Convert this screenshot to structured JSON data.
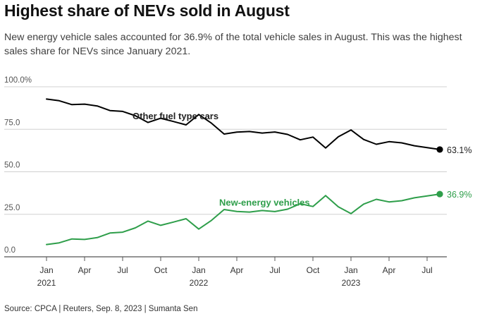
{
  "title": "Highest share of NEVs sold in August",
  "subtitle": "New energy vehicle sales accounted for 36.9% of the total vehicle sales in August. This was the highest sales share for NEVs since January 2021.",
  "source": "Source: CPCA | Reuters, Sep. 8, 2023 | Sumanta Sen",
  "chart_data": {
    "type": "line",
    "ylim": [
      0,
      100
    ],
    "yticks": [
      0,
      25,
      50,
      75,
      100
    ],
    "ytick_labels": [
      "0.0",
      "25.0",
      "50.0",
      "75.0",
      "100.0%"
    ],
    "xticks": [
      {
        "index": 0,
        "label": "Jan",
        "year": "2021"
      },
      {
        "index": 3,
        "label": "Apr",
        "year": ""
      },
      {
        "index": 6,
        "label": "Jul",
        "year": ""
      },
      {
        "index": 9,
        "label": "Oct",
        "year": ""
      },
      {
        "index": 12,
        "label": "Jan",
        "year": "2022"
      },
      {
        "index": 15,
        "label": "Apr",
        "year": ""
      },
      {
        "index": 18,
        "label": "Jul",
        "year": ""
      },
      {
        "index": 21,
        "label": "Oct",
        "year": ""
      },
      {
        "index": 24,
        "label": "Jan",
        "year": "2023"
      },
      {
        "index": 27,
        "label": "Apr",
        "year": ""
      },
      {
        "index": 30,
        "label": "Jul",
        "year": ""
      }
    ],
    "x": [
      "2021-01",
      "2021-02",
      "2021-03",
      "2021-04",
      "2021-05",
      "2021-06",
      "2021-07",
      "2021-08",
      "2021-09",
      "2021-10",
      "2021-11",
      "2021-12",
      "2022-01",
      "2022-02",
      "2022-03",
      "2022-04",
      "2022-05",
      "2022-06",
      "2022-07",
      "2022-08",
      "2022-09",
      "2022-10",
      "2022-11",
      "2022-12",
      "2023-01",
      "2023-02",
      "2023-03",
      "2023-04",
      "2023-05",
      "2023-06",
      "2023-07",
      "2023-08"
    ],
    "series": [
      {
        "name": "Other fuel type cars",
        "color": "#000000",
        "end_label": "63.1%",
        "values": [
          92.8,
          91.8,
          89.5,
          89.8,
          88.7,
          86.0,
          85.5,
          83.0,
          79.0,
          81.5,
          79.6,
          77.6,
          83.7,
          78.6,
          72.2,
          73.3,
          73.7,
          72.8,
          73.4,
          72.0,
          68.8,
          70.4,
          64.0,
          70.6,
          74.6,
          69.0,
          66.2,
          67.7,
          67.0,
          65.3,
          64.2,
          63.1
        ]
      },
      {
        "name": "New-energy vehicles",
        "color": "#2e9e4a",
        "end_label": "36.9%",
        "values": [
          7.2,
          8.2,
          10.5,
          10.2,
          11.3,
          14.0,
          14.5,
          17.0,
          21.0,
          18.5,
          20.4,
          22.4,
          16.3,
          21.4,
          27.8,
          26.7,
          26.3,
          27.2,
          26.6,
          28.0,
          31.2,
          29.6,
          36.0,
          29.4,
          25.4,
          31.0,
          33.8,
          32.3,
          33.0,
          34.7,
          35.8,
          36.9
        ]
      }
    ]
  }
}
